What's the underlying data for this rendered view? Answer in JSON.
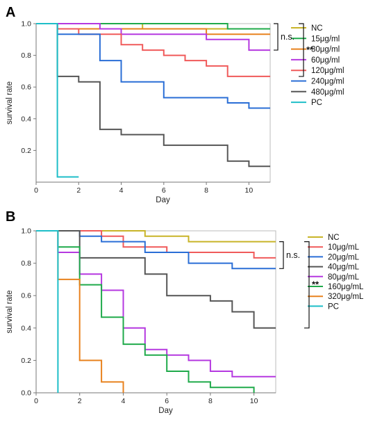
{
  "chart_data": [
    {
      "panel": "A",
      "type": "line",
      "step": true,
      "xlabel": "Day",
      "ylabel": "survival rate",
      "xlim": [
        0,
        11
      ],
      "ylim": [
        0,
        1.0
      ],
      "x_ticks": [
        "0",
        "2",
        "4",
        "6",
        "8",
        "10"
      ],
      "y_ticks": [
        "0.2",
        "0.4",
        "0.6",
        "0.8",
        "1.0"
      ],
      "grid": false,
      "legend_position": "right",
      "series": [
        {
          "name": "NC",
          "color": "#C8B428",
          "points": [
            [
              0,
              1.0
            ],
            [
              5,
              1.0
            ],
            [
              5,
              0.967
            ],
            [
              11,
              0.967
            ]
          ]
        },
        {
          "name": "15μg/ml",
          "color": "#1FAA4A",
          "points": [
            [
              0,
              1.0
            ],
            [
              9,
              1.0
            ],
            [
              9,
              0.967
            ],
            [
              11,
              0.967
            ]
          ]
        },
        {
          "name": "30μg/ml",
          "color": "#E8821E",
          "points": [
            [
              0,
              1.0
            ],
            [
              1,
              1.0
            ],
            [
              1,
              0.967
            ],
            [
              8,
              0.967
            ],
            [
              8,
              0.933
            ],
            [
              11,
              0.933
            ]
          ]
        },
        {
          "name": "60μg/ml",
          "color": "#B538E0",
          "points": [
            [
              0,
              1.0
            ],
            [
              3,
              1.0
            ],
            [
              3,
              0.967
            ],
            [
              4,
              0.967
            ],
            [
              4,
              0.933
            ],
            [
              8,
              0.933
            ],
            [
              8,
              0.9
            ],
            [
              10,
              0.9
            ],
            [
              10,
              0.833
            ],
            [
              11,
              0.833
            ]
          ]
        },
        {
          "name": "120μg/ml",
          "color": "#F05A5A",
          "points": [
            [
              0,
              1.0
            ],
            [
              1,
              1.0
            ],
            [
              1,
              0.967
            ],
            [
              2,
              0.967
            ],
            [
              2,
              0.933
            ],
            [
              4,
              0.933
            ],
            [
              4,
              0.867
            ],
            [
              5,
              0.867
            ],
            [
              5,
              0.833
            ],
            [
              6,
              0.833
            ],
            [
              6,
              0.8
            ],
            [
              7,
              0.8
            ],
            [
              7,
              0.767
            ],
            [
              8,
              0.767
            ],
            [
              8,
              0.733
            ],
            [
              9,
              0.733
            ],
            [
              9,
              0.667
            ],
            [
              11,
              0.667
            ]
          ]
        },
        {
          "name": "240μg/ml",
          "color": "#2A6ED6",
          "points": [
            [
              0,
              1.0
            ],
            [
              1,
              1.0
            ],
            [
              1,
              0.933
            ],
            [
              3,
              0.933
            ],
            [
              3,
              0.767
            ],
            [
              4,
              0.767
            ],
            [
              4,
              0.633
            ],
            [
              6,
              0.633
            ],
            [
              6,
              0.533
            ],
            [
              9,
              0.533
            ],
            [
              9,
              0.5
            ],
            [
              10,
              0.5
            ],
            [
              10,
              0.467
            ],
            [
              11,
              0.467
            ]
          ]
        },
        {
          "name": "480μg/ml",
          "color": "#555555",
          "points": [
            [
              0,
              1.0
            ],
            [
              1,
              1.0
            ],
            [
              1,
              0.667
            ],
            [
              2,
              0.667
            ],
            [
              2,
              0.633
            ],
            [
              3,
              0.633
            ],
            [
              3,
              0.333
            ],
            [
              4,
              0.333
            ],
            [
              4,
              0.3
            ],
            [
              6,
              0.3
            ],
            [
              6,
              0.233
            ],
            [
              9,
              0.233
            ],
            [
              9,
              0.133
            ],
            [
              10,
              0.133
            ],
            [
              10,
              0.1
            ],
            [
              11,
              0.1
            ]
          ]
        },
        {
          "name": "PC",
          "color": "#1EBEC8",
          "points": [
            [
              0,
              1.0
            ],
            [
              1,
              1.0
            ],
            [
              1,
              0.033
            ],
            [
              2,
              0.033
            ]
          ]
        }
      ],
      "annotations": [
        {
          "text": "n.s.",
          "bracket": [
            1.0,
            0.833
          ]
        },
        {
          "text": "**",
          "bracket": [
            1.0,
            0.667
          ]
        }
      ]
    },
    {
      "panel": "B",
      "type": "line",
      "step": true,
      "xlabel": "Day",
      "ylabel": "survival rate",
      "xlim": [
        0,
        11
      ],
      "ylim": [
        0,
        1.0
      ],
      "x_ticks": [
        "0",
        "2",
        "4",
        "6",
        "8",
        "10"
      ],
      "y_ticks": [
        "0.0",
        "0.2",
        "0.4",
        "0.6",
        "0.8",
        "1.0"
      ],
      "grid": false,
      "legend_position": "right",
      "series": [
        {
          "name": "NC",
          "color": "#C8B428",
          "points": [
            [
              0,
              1.0
            ],
            [
              5,
              1.0
            ],
            [
              5,
              0.967
            ],
            [
              7,
              0.967
            ],
            [
              7,
              0.933
            ],
            [
              11,
              0.933
            ]
          ]
        },
        {
          "name": "10μg/mL",
          "color": "#F05A5A",
          "points": [
            [
              0,
              1.0
            ],
            [
              3,
              1.0
            ],
            [
              3,
              0.967
            ],
            [
              4,
              0.967
            ],
            [
              4,
              0.9
            ],
            [
              6,
              0.9
            ],
            [
              6,
              0.867
            ],
            [
              10,
              0.867
            ],
            [
              10,
              0.833
            ],
            [
              11,
              0.833
            ]
          ]
        },
        {
          "name": "20μg/mL",
          "color": "#2A6ED6",
          "points": [
            [
              0,
              1.0
            ],
            [
              2,
              1.0
            ],
            [
              2,
              0.967
            ],
            [
              3,
              0.967
            ],
            [
              3,
              0.933
            ],
            [
              5,
              0.933
            ],
            [
              5,
              0.867
            ],
            [
              7,
              0.867
            ],
            [
              7,
              0.8
            ],
            [
              9,
              0.8
            ],
            [
              9,
              0.767
            ],
            [
              11,
              0.767
            ]
          ]
        },
        {
          "name": "40μg/mL",
          "color": "#555555",
          "points": [
            [
              0,
              1.0
            ],
            [
              2,
              1.0
            ],
            [
              2,
              0.833
            ],
            [
              5,
              0.833
            ],
            [
              5,
              0.733
            ],
            [
              6,
              0.733
            ],
            [
              6,
              0.6
            ],
            [
              8,
              0.6
            ],
            [
              8,
              0.567
            ],
            [
              9,
              0.567
            ],
            [
              9,
              0.5
            ],
            [
              10,
              0.5
            ],
            [
              10,
              0.4
            ],
            [
              11,
              0.4
            ]
          ]
        },
        {
          "name": "80μg/mL",
          "color": "#B538E0",
          "points": [
            [
              0,
              1.0
            ],
            [
              1,
              1.0
            ],
            [
              1,
              0.867
            ],
            [
              2,
              0.867
            ],
            [
              2,
              0.733
            ],
            [
              3,
              0.733
            ],
            [
              3,
              0.633
            ],
            [
              4,
              0.633
            ],
            [
              4,
              0.4
            ],
            [
              5,
              0.4
            ],
            [
              5,
              0.267
            ],
            [
              6,
              0.267
            ],
            [
              6,
              0.233
            ],
            [
              7,
              0.233
            ],
            [
              7,
              0.2
            ],
            [
              8,
              0.2
            ],
            [
              8,
              0.133
            ],
            [
              9,
              0.133
            ],
            [
              9,
              0.1
            ],
            [
              11,
              0.1
            ]
          ]
        },
        {
          "name": "160μg/mL",
          "color": "#1FAA4A",
          "points": [
            [
              0,
              1.0
            ],
            [
              1,
              1.0
            ],
            [
              1,
              0.9
            ],
            [
              2,
              0.9
            ],
            [
              2,
              0.667
            ],
            [
              3,
              0.667
            ],
            [
              3,
              0.467
            ],
            [
              4,
              0.467
            ],
            [
              4,
              0.3
            ],
            [
              5,
              0.3
            ],
            [
              5,
              0.233
            ],
            [
              6,
              0.233
            ],
            [
              6,
              0.133
            ],
            [
              7,
              0.133
            ],
            [
              7,
              0.067
            ],
            [
              8,
              0.067
            ],
            [
              8,
              0.033
            ],
            [
              10,
              0.033
            ],
            [
              10,
              0.0
            ]
          ]
        },
        {
          "name": "320μg/mL",
          "color": "#E8821E",
          "points": [
            [
              0,
              1.0
            ],
            [
              1,
              1.0
            ],
            [
              1,
              0.7
            ],
            [
              2,
              0.7
            ],
            [
              2,
              0.2
            ],
            [
              3,
              0.2
            ],
            [
              3,
              0.067
            ],
            [
              4,
              0.067
            ],
            [
              4,
              0.0
            ]
          ]
        },
        {
          "name": "PC",
          "color": "#1EBEC8",
          "points": [
            [
              0,
              1.0
            ],
            [
              1,
              1.0
            ],
            [
              1,
              0.0
            ]
          ]
        }
      ],
      "annotations": [
        {
          "text": "n.s.",
          "bracket": [
            0.933,
            0.767
          ]
        },
        {
          "text": "**",
          "bracket": [
            0.933,
            0.4
          ]
        }
      ]
    }
  ]
}
